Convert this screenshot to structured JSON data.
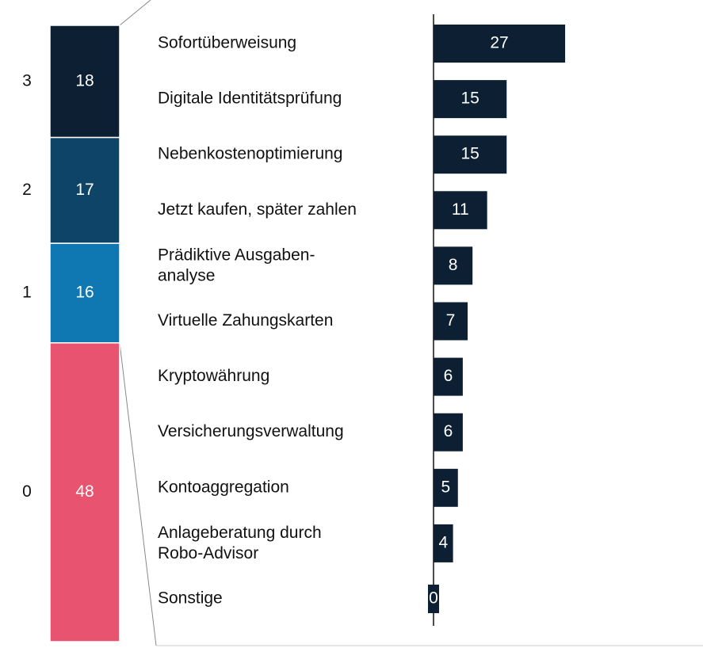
{
  "chart_data": [
    {
      "type": "stacked_column",
      "categories": [
        "3",
        "2",
        "1",
        "0"
      ],
      "values": [
        18,
        17,
        16,
        48
      ],
      "colors": [
        "#0c1f33",
        "#0e4468",
        "#0f78b2",
        "#e8546f"
      ]
    },
    {
      "type": "hbar",
      "categories": [
        "Sofortüberweisung",
        "Digitale Identitätsprüfung",
        "Nebenkostenoptimierung",
        "Jetzt kaufen, später zahlen",
        "Prädiktive Ausgaben-\nanalyse",
        "Virtuelle Zahungskarten",
        "Kryptowährung",
        "Versicherungsverwaltung",
        "Kontoaggregation",
        "Anlageberatung durch\nRobo-Advisor",
        "Sonstige"
      ],
      "values": [
        27,
        15,
        15,
        11,
        8,
        7,
        6,
        6,
        5,
        4,
        0
      ],
      "color": "#0c1f33"
    }
  ]
}
